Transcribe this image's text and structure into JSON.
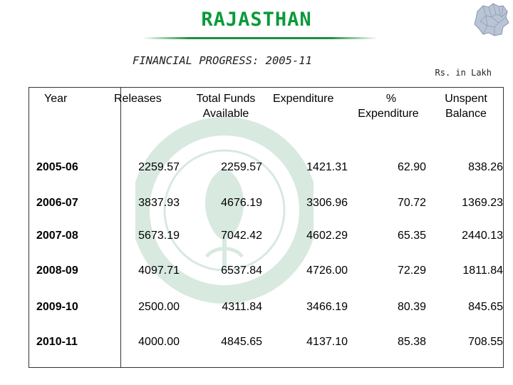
{
  "title": "RAJASTHAN",
  "subtitle": "FINANCIAL PROGRESS: 2005-11",
  "units": "Rs. in Lakh",
  "table": {
    "headers": {
      "year": "Year",
      "releases": "Releases",
      "total_funds_1": "Total Funds",
      "total_funds_2": "Available",
      "expenditure": "Expenditure",
      "pct_1": "%",
      "pct_2": "Expenditure",
      "unspent_1": "Unspent",
      "unspent_2": "Balance"
    },
    "rows": [
      [
        "2005-06",
        "2259.57",
        "2259.57",
        "1421.31",
        "62.90",
        "838.26"
      ],
      [
        "2006-07",
        "3837.93",
        "4676.19",
        "3306.96",
        "70.72",
        "1369.23"
      ],
      [
        "2007-08",
        "5673.19",
        "7042.42",
        "4602.29",
        "65.35",
        "2440.13"
      ],
      [
        "2008-09",
        "4097.71",
        "6537.84",
        "4726.00",
        "72.29",
        "1811.84"
      ],
      [
        "2009-10",
        "2500.00",
        "4311.84",
        "3466.19",
        "80.39",
        "845.65"
      ],
      [
        "2010-11",
        "4000.00",
        "4845.65",
        "4137.10",
        "85.38",
        "708.55"
      ]
    ]
  },
  "colors": {
    "title": "#0a9a3a",
    "watermark": "#2e8b57"
  }
}
